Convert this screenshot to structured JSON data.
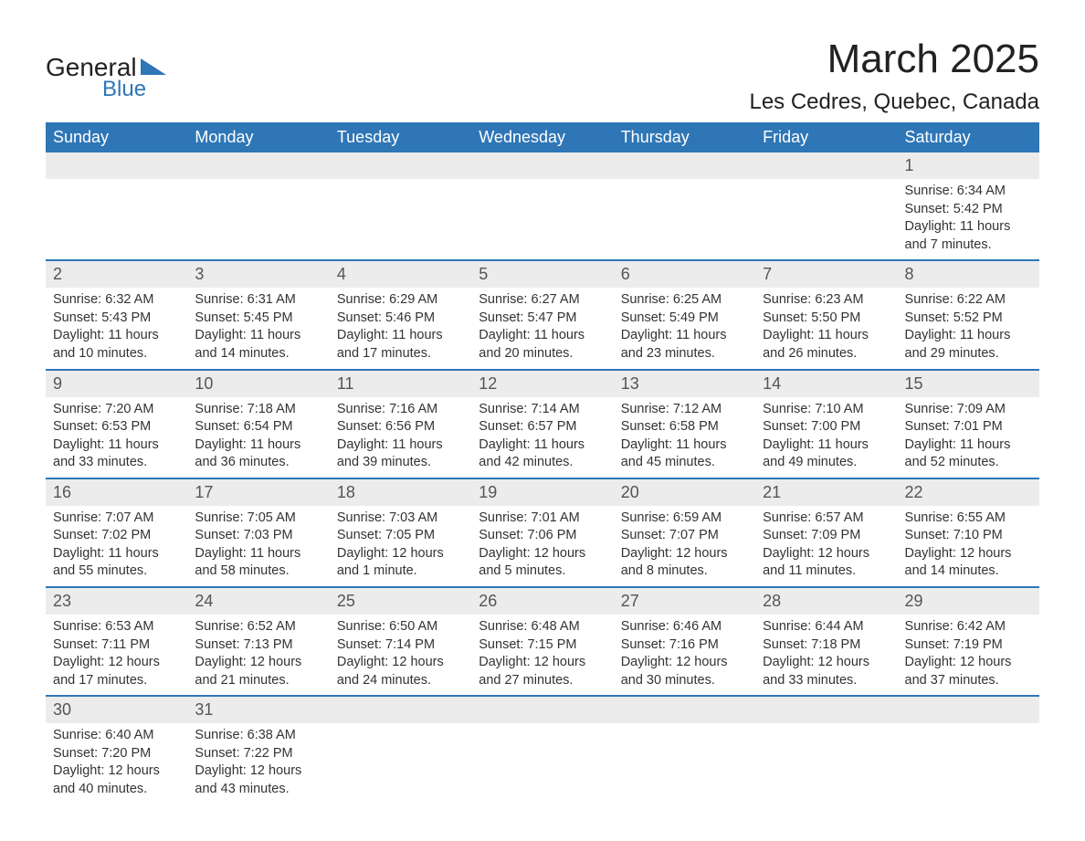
{
  "logo": {
    "text_general": "General",
    "text_blue": "Blue"
  },
  "header": {
    "month_title": "March 2025",
    "location": "Les Cedres, Quebec, Canada"
  },
  "day_labels": [
    "Sunday",
    "Monday",
    "Tuesday",
    "Wednesday",
    "Thursday",
    "Friday",
    "Saturday"
  ],
  "colors": {
    "header_bg": "#2e76b6",
    "header_text": "#ffffff",
    "day_num_bg": "#ececec",
    "row_border": "#2e76b6",
    "text": "#333333",
    "title_text": "#222222"
  },
  "typography": {
    "month_title_fontsize": 44,
    "location_fontsize": 24,
    "day_header_fontsize": 18,
    "day_num_fontsize": 18,
    "body_fontsize": 14.5
  },
  "weeks": [
    [
      {
        "empty": true
      },
      {
        "empty": true
      },
      {
        "empty": true
      },
      {
        "empty": true
      },
      {
        "empty": true
      },
      {
        "empty": true
      },
      {
        "day": "1",
        "sunrise": "Sunrise: 6:34 AM",
        "sunset": "Sunset: 5:42 PM",
        "dl1": "Daylight: 11 hours",
        "dl2": "and 7 minutes."
      }
    ],
    [
      {
        "day": "2",
        "sunrise": "Sunrise: 6:32 AM",
        "sunset": "Sunset: 5:43 PM",
        "dl1": "Daylight: 11 hours",
        "dl2": "and 10 minutes."
      },
      {
        "day": "3",
        "sunrise": "Sunrise: 6:31 AM",
        "sunset": "Sunset: 5:45 PM",
        "dl1": "Daylight: 11 hours",
        "dl2": "and 14 minutes."
      },
      {
        "day": "4",
        "sunrise": "Sunrise: 6:29 AM",
        "sunset": "Sunset: 5:46 PM",
        "dl1": "Daylight: 11 hours",
        "dl2": "and 17 minutes."
      },
      {
        "day": "5",
        "sunrise": "Sunrise: 6:27 AM",
        "sunset": "Sunset: 5:47 PM",
        "dl1": "Daylight: 11 hours",
        "dl2": "and 20 minutes."
      },
      {
        "day": "6",
        "sunrise": "Sunrise: 6:25 AM",
        "sunset": "Sunset: 5:49 PM",
        "dl1": "Daylight: 11 hours",
        "dl2": "and 23 minutes."
      },
      {
        "day": "7",
        "sunrise": "Sunrise: 6:23 AM",
        "sunset": "Sunset: 5:50 PM",
        "dl1": "Daylight: 11 hours",
        "dl2": "and 26 minutes."
      },
      {
        "day": "8",
        "sunrise": "Sunrise: 6:22 AM",
        "sunset": "Sunset: 5:52 PM",
        "dl1": "Daylight: 11 hours",
        "dl2": "and 29 minutes."
      }
    ],
    [
      {
        "day": "9",
        "sunrise": "Sunrise: 7:20 AM",
        "sunset": "Sunset: 6:53 PM",
        "dl1": "Daylight: 11 hours",
        "dl2": "and 33 minutes."
      },
      {
        "day": "10",
        "sunrise": "Sunrise: 7:18 AM",
        "sunset": "Sunset: 6:54 PM",
        "dl1": "Daylight: 11 hours",
        "dl2": "and 36 minutes."
      },
      {
        "day": "11",
        "sunrise": "Sunrise: 7:16 AM",
        "sunset": "Sunset: 6:56 PM",
        "dl1": "Daylight: 11 hours",
        "dl2": "and 39 minutes."
      },
      {
        "day": "12",
        "sunrise": "Sunrise: 7:14 AM",
        "sunset": "Sunset: 6:57 PM",
        "dl1": "Daylight: 11 hours",
        "dl2": "and 42 minutes."
      },
      {
        "day": "13",
        "sunrise": "Sunrise: 7:12 AM",
        "sunset": "Sunset: 6:58 PM",
        "dl1": "Daylight: 11 hours",
        "dl2": "and 45 minutes."
      },
      {
        "day": "14",
        "sunrise": "Sunrise: 7:10 AM",
        "sunset": "Sunset: 7:00 PM",
        "dl1": "Daylight: 11 hours",
        "dl2": "and 49 minutes."
      },
      {
        "day": "15",
        "sunrise": "Sunrise: 7:09 AM",
        "sunset": "Sunset: 7:01 PM",
        "dl1": "Daylight: 11 hours",
        "dl2": "and 52 minutes."
      }
    ],
    [
      {
        "day": "16",
        "sunrise": "Sunrise: 7:07 AM",
        "sunset": "Sunset: 7:02 PM",
        "dl1": "Daylight: 11 hours",
        "dl2": "and 55 minutes."
      },
      {
        "day": "17",
        "sunrise": "Sunrise: 7:05 AM",
        "sunset": "Sunset: 7:03 PM",
        "dl1": "Daylight: 11 hours",
        "dl2": "and 58 minutes."
      },
      {
        "day": "18",
        "sunrise": "Sunrise: 7:03 AM",
        "sunset": "Sunset: 7:05 PM",
        "dl1": "Daylight: 12 hours",
        "dl2": "and 1 minute."
      },
      {
        "day": "19",
        "sunrise": "Sunrise: 7:01 AM",
        "sunset": "Sunset: 7:06 PM",
        "dl1": "Daylight: 12 hours",
        "dl2": "and 5 minutes."
      },
      {
        "day": "20",
        "sunrise": "Sunrise: 6:59 AM",
        "sunset": "Sunset: 7:07 PM",
        "dl1": "Daylight: 12 hours",
        "dl2": "and 8 minutes."
      },
      {
        "day": "21",
        "sunrise": "Sunrise: 6:57 AM",
        "sunset": "Sunset: 7:09 PM",
        "dl1": "Daylight: 12 hours",
        "dl2": "and 11 minutes."
      },
      {
        "day": "22",
        "sunrise": "Sunrise: 6:55 AM",
        "sunset": "Sunset: 7:10 PM",
        "dl1": "Daylight: 12 hours",
        "dl2": "and 14 minutes."
      }
    ],
    [
      {
        "day": "23",
        "sunrise": "Sunrise: 6:53 AM",
        "sunset": "Sunset: 7:11 PM",
        "dl1": "Daylight: 12 hours",
        "dl2": "and 17 minutes."
      },
      {
        "day": "24",
        "sunrise": "Sunrise: 6:52 AM",
        "sunset": "Sunset: 7:13 PM",
        "dl1": "Daylight: 12 hours",
        "dl2": "and 21 minutes."
      },
      {
        "day": "25",
        "sunrise": "Sunrise: 6:50 AM",
        "sunset": "Sunset: 7:14 PM",
        "dl1": "Daylight: 12 hours",
        "dl2": "and 24 minutes."
      },
      {
        "day": "26",
        "sunrise": "Sunrise: 6:48 AM",
        "sunset": "Sunset: 7:15 PM",
        "dl1": "Daylight: 12 hours",
        "dl2": "and 27 minutes."
      },
      {
        "day": "27",
        "sunrise": "Sunrise: 6:46 AM",
        "sunset": "Sunset: 7:16 PM",
        "dl1": "Daylight: 12 hours",
        "dl2": "and 30 minutes."
      },
      {
        "day": "28",
        "sunrise": "Sunrise: 6:44 AM",
        "sunset": "Sunset: 7:18 PM",
        "dl1": "Daylight: 12 hours",
        "dl2": "and 33 minutes."
      },
      {
        "day": "29",
        "sunrise": "Sunrise: 6:42 AM",
        "sunset": "Sunset: 7:19 PM",
        "dl1": "Daylight: 12 hours",
        "dl2": "and 37 minutes."
      }
    ],
    [
      {
        "day": "30",
        "sunrise": "Sunrise: 6:40 AM",
        "sunset": "Sunset: 7:20 PM",
        "dl1": "Daylight: 12 hours",
        "dl2": "and 40 minutes."
      },
      {
        "day": "31",
        "sunrise": "Sunrise: 6:38 AM",
        "sunset": "Sunset: 7:22 PM",
        "dl1": "Daylight: 12 hours",
        "dl2": "and 43 minutes."
      },
      {
        "empty": true
      },
      {
        "empty": true
      },
      {
        "empty": true
      },
      {
        "empty": true
      },
      {
        "empty": true
      }
    ]
  ]
}
